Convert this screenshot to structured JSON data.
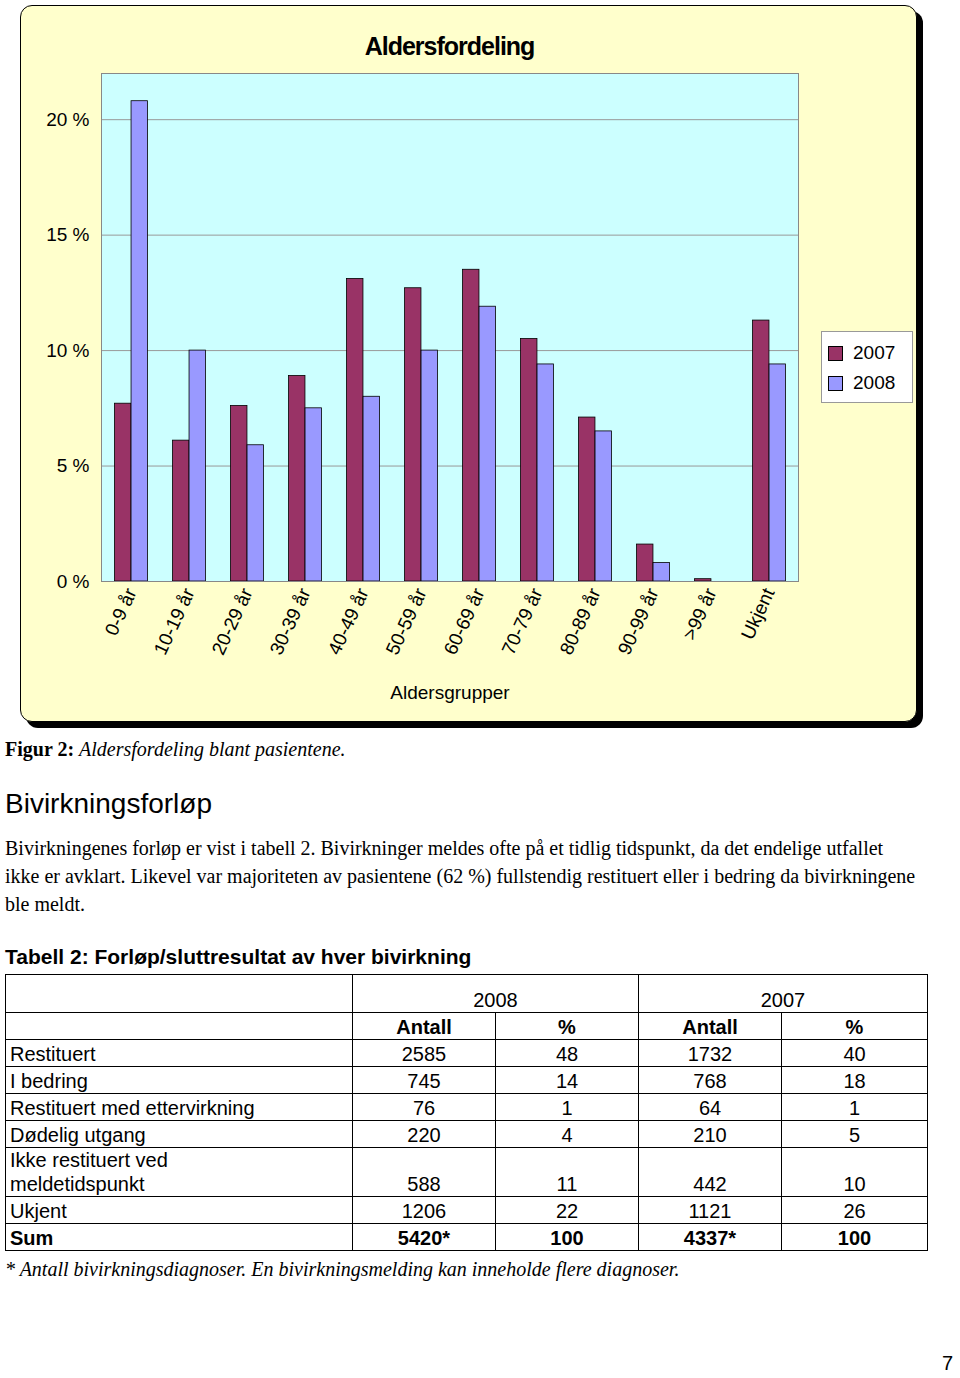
{
  "chart_data": {
    "type": "bar",
    "title": "Aldersfordeling",
    "x_label": "Aldersgrupper",
    "categories": [
      "0-9 år",
      "10-19 år",
      "20-29 år",
      "30-39 år",
      "40-49 år",
      "50-59 år",
      "60-69 år",
      "70-79 år",
      "80-89 år",
      "90-99 år",
      ">99 år",
      "Ukjent"
    ],
    "series": [
      {
        "name": "2007",
        "color": "#993366",
        "values": [
          7.7,
          6.1,
          7.6,
          8.9,
          13.1,
          12.7,
          13.5,
          10.5,
          7.1,
          1.6,
          0.1,
          11.3
        ]
      },
      {
        "name": "2008",
        "color": "#9999ff",
        "values": [
          20.8,
          10.0,
          5.9,
          7.5,
          8.0,
          10.0,
          11.9,
          9.4,
          6.5,
          0.8,
          0,
          9.4
        ]
      }
    ],
    "ylim": [
      0,
      22
    ],
    "yticks": [
      {
        "value": 0,
        "label": "0 %"
      },
      {
        "value": 5,
        "label": "5 %"
      },
      {
        "value": 10,
        "label": "10 %"
      },
      {
        "value": 15,
        "label": "15 %"
      },
      {
        "value": 20,
        "label": "20 %"
      }
    ],
    "grid": true,
    "legend": "right"
  },
  "document": {
    "figure_caption": {
      "label": "Figur 2:",
      "text": "Aldersfordeling blant pasientene."
    },
    "heading": "Bivirkningsforløp",
    "paragraph": "Bivirkningenes forløp er vist i tabell 2. Bivirkninger meldes ofte på et tidlig tidspunkt, da det endelige utfallet ikke er avklart. Likevel var majoriteten av pasientene (62 %) fullstendig restituert eller i bedring da bivirkningene ble meldt.",
    "table": {
      "title": "Tabell 2: Forløp/sluttresultat av hver bivirkning",
      "groups": [
        "2008",
        "2007"
      ],
      "columns": [
        "Antall",
        "%",
        "Antall",
        "%"
      ],
      "rows": [
        [
          "Restituert",
          "2585",
          "48",
          "1732",
          "40"
        ],
        [
          "I bedring",
          "745",
          "14",
          "768",
          "18"
        ],
        [
          "Restituert med ettervirkning",
          "76",
          "1",
          "64",
          "1"
        ],
        [
          "Dødelig utgang",
          "220",
          "4",
          "210",
          "5"
        ],
        [
          "Ikke restituert ved\nmeldetidspunkt",
          "588",
          "11",
          "442",
          "10"
        ],
        [
          "Ukjent",
          "1206",
          "22",
          "1121",
          "26"
        ],
        [
          "Sum",
          "5420*",
          "100",
          "4337*",
          "100"
        ]
      ],
      "footnote": "* Antall bivirkningsdiagnoser. En bivirkningsmelding kan inneholde flere diagnoser."
    },
    "page_number": "7"
  }
}
